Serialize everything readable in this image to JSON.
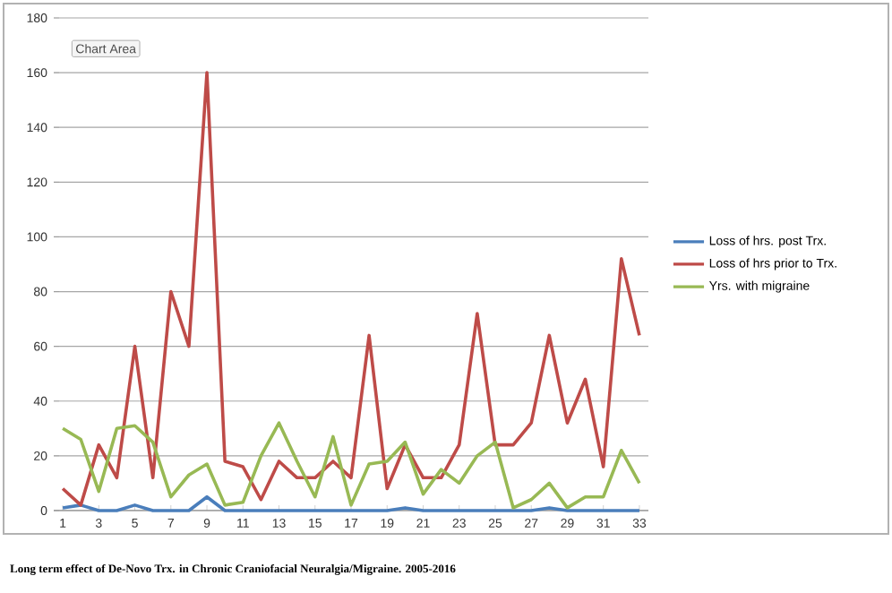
{
  "chart_data": {
    "type": "line",
    "categories": [
      "1",
      null,
      "3",
      null,
      "5",
      null,
      "7",
      null,
      "9",
      null,
      "11",
      null,
      "13",
      null,
      "15",
      null,
      "17",
      null,
      "19",
      null,
      "21",
      null,
      "23",
      null,
      "25",
      null,
      "27",
      null,
      "29",
      null,
      "31",
      null,
      "33"
    ],
    "series": [
      {
        "name": "Loss of hrs. post Trx.",
        "color": "#4a7ebb",
        "values": [
          1,
          2,
          0,
          0,
          2,
          0,
          0,
          0,
          5,
          0,
          0,
          0,
          0,
          0,
          0,
          0,
          0,
          0,
          0,
          1,
          0,
          0,
          0,
          0,
          0,
          0,
          0,
          1,
          0,
          0,
          0,
          0,
          0
        ]
      },
      {
        "name": "Loss of hrs prior to Trx.",
        "color": "#be4b48",
        "values": [
          8,
          2,
          24,
          12,
          60,
          12,
          80,
          60,
          160,
          18,
          16,
          4,
          18,
          12,
          12,
          18,
          12,
          64,
          8,
          24,
          12,
          12,
          24,
          72,
          24,
          24,
          32,
          64,
          32,
          48,
          16,
          92,
          64
        ]
      },
      {
        "name": "Yrs. with migraine",
        "color": "#98b954",
        "values": [
          30,
          26,
          7,
          30,
          31,
          25,
          5,
          13,
          17,
          2,
          3,
          20,
          32,
          18,
          5,
          27,
          2,
          17,
          18,
          25,
          6,
          15,
          10,
          20,
          25,
          1,
          4,
          10,
          1,
          5,
          5,
          22,
          10
        ]
      }
    ],
    "ylim": [
      0,
      180
    ],
    "yticks": [
      0,
      20,
      40,
      60,
      80,
      100,
      120,
      140,
      160,
      180
    ],
    "grid": "y",
    "legend": "right",
    "marker": "none",
    "line_style": "solid",
    "annotations": [
      "Chart Area",
      "Long term effect of De-Novo Trx. in  Chronic Craniofacial Neuralgia/Migraine. 2005-2016"
    ]
  }
}
